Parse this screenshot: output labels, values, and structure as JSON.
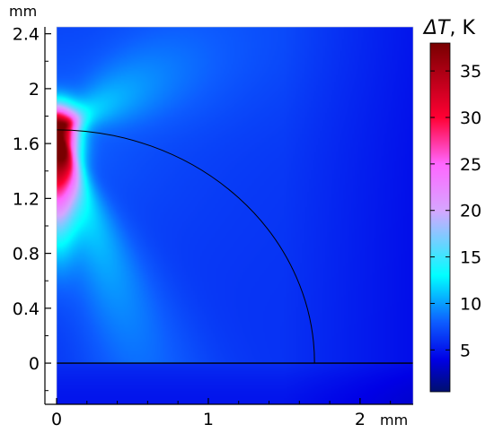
{
  "chart_data": {
    "type": "heatmap",
    "quantity_symbol": "ΔT",
    "quantity_unit": "K",
    "x_axis": {
      "unit": "mm",
      "range": [
        0,
        2.35
      ],
      "ticks": [
        0,
        1,
        2
      ],
      "tick_labels": [
        "0",
        "1",
        "2"
      ]
    },
    "y_axis": {
      "unit": "mm",
      "range": [
        -0.3,
        2.45
      ],
      "ticks": [
        0,
        0.4,
        0.8,
        1.2,
        1.6,
        2,
        2.4
      ],
      "tick_labels": [
        "0",
        "0.4",
        "0.8",
        "1.2",
        "1.6",
        "2",
        "2.4"
      ]
    },
    "colorbar": {
      "range": [
        0.5,
        38
      ],
      "ticks": [
        5,
        10,
        15,
        20,
        25,
        30,
        35
      ],
      "tick_labels": [
        "5",
        "10",
        "15",
        "20",
        "25",
        "30",
        "35"
      ],
      "colormap_stops": [
        {
          "value": 0.5,
          "color": "#000f6e"
        },
        {
          "value": 4,
          "color": "#0000e6"
        },
        {
          "value": 8,
          "color": "#0d5dff"
        },
        {
          "value": 13,
          "color": "#00ffff"
        },
        {
          "value": 20,
          "color": "#d6a6ff"
        },
        {
          "value": 25,
          "color": "#ff66ff"
        },
        {
          "value": 30,
          "color": "#ff0033"
        },
        {
          "value": 38,
          "color": "#780000"
        }
      ]
    },
    "field": {
      "background_deltaT": 6,
      "hotspot": {
        "x": 0.0,
        "y": 1.7,
        "peak_deltaT": 38
      }
    },
    "boundaries": {
      "quarter_circle_radius": 1.7,
      "horizontal_line_y": 0
    },
    "grid": false
  }
}
